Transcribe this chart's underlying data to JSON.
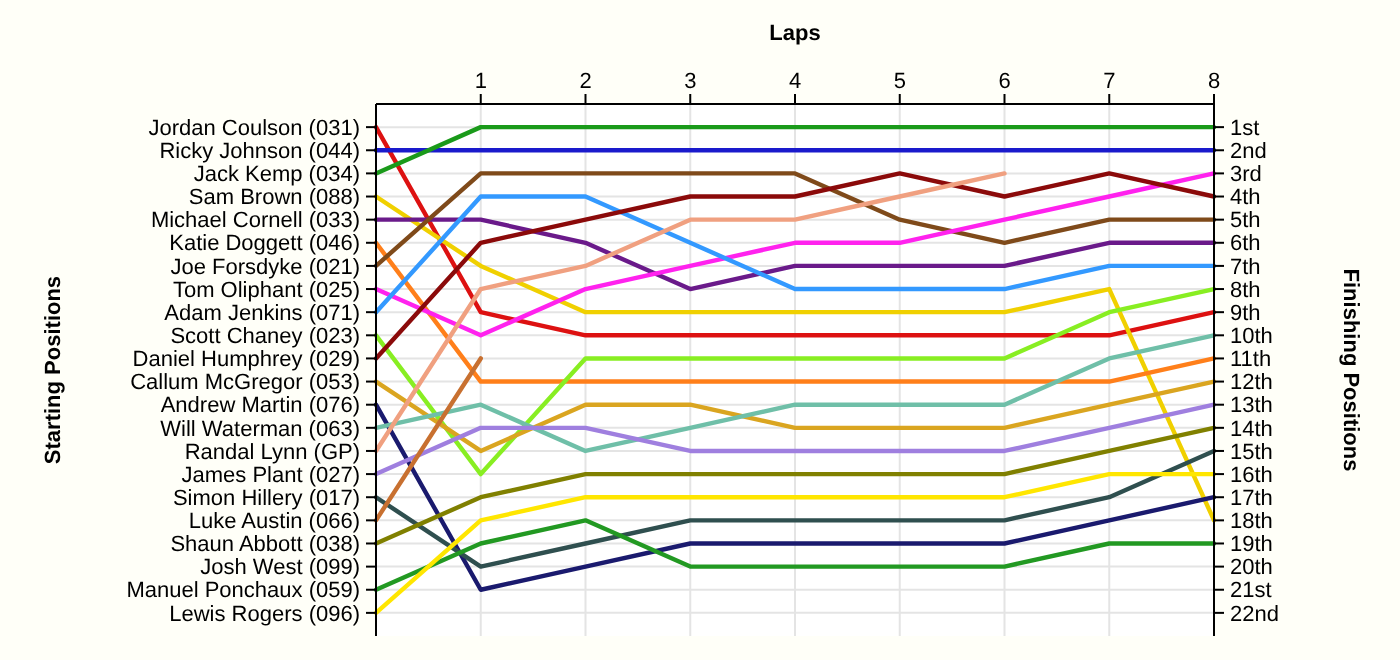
{
  "chart_data": {
    "type": "line",
    "xlabel": "Laps",
    "ylabel": "Finishing Positions",
    "x": [
      0,
      1,
      2,
      3,
      4,
      5,
      6,
      7,
      8
    ],
    "xlim": [
      0,
      8
    ],
    "xticks": [
      1,
      2,
      3,
      4,
      5,
      6,
      7,
      8
    ],
    "ylim": [
      23,
      0
    ],
    "yticks": [
      {
        "value": 1,
        "label": "1st"
      },
      {
        "value": 2,
        "label": "2nd"
      },
      {
        "value": 3,
        "label": "3rd"
      },
      {
        "value": 4,
        "label": "4th"
      },
      {
        "value": 5,
        "label": "5th"
      },
      {
        "value": 6,
        "label": "6th"
      },
      {
        "value": 7,
        "label": "7th"
      },
      {
        "value": 8,
        "label": "8th"
      },
      {
        "value": 9,
        "label": "9th"
      },
      {
        "value": 10,
        "label": "10th"
      },
      {
        "value": 11,
        "label": "11th"
      },
      {
        "value": 12,
        "label": "12th"
      },
      {
        "value": 13,
        "label": "13th"
      },
      {
        "value": 14,
        "label": "14th"
      },
      {
        "value": 15,
        "label": "15th"
      },
      {
        "value": 16,
        "label": "16th"
      },
      {
        "value": 17,
        "label": "17th"
      },
      {
        "value": 18,
        "label": "18th"
      },
      {
        "value": 19,
        "label": "19th"
      },
      {
        "value": 20,
        "label": "20th"
      },
      {
        "value": 21,
        "label": "21st"
      },
      {
        "value": 22,
        "label": "22nd"
      }
    ],
    "grid": true,
    "annotations": [
      "Starting Positions",
      "Josh West (099)"
    ],
    "series": [
      {
        "name": "Jordan Coulson (031)",
        "color": "#dd1111",
        "values": [
          1,
          9,
          10,
          10,
          10,
          10,
          10,
          10,
          9
        ]
      },
      {
        "name": "Ricky Johnson (044)",
        "color": "#1a1acc",
        "values": [
          2,
          2,
          2,
          2,
          2,
          2,
          2,
          2,
          2
        ]
      },
      {
        "name": "Jack Kemp (034)",
        "color": "#1a9a1a",
        "values": [
          3,
          1,
          1,
          1,
          1,
          1,
          1,
          1,
          1
        ]
      },
      {
        "name": "Sam Brown (088)",
        "color": "#f0d000",
        "values": [
          4,
          7,
          9,
          9,
          9,
          9,
          9,
          8,
          18
        ]
      },
      {
        "name": "Michael Cornell (033)",
        "color": "#6a1a8a",
        "values": [
          5,
          5,
          6,
          8,
          7,
          7,
          7,
          6,
          6
        ]
      },
      {
        "name": "Katie Doggett (046)",
        "color": "#ff7f1a",
        "values": [
          6,
          12,
          12,
          12,
          12,
          12,
          12,
          12,
          11
        ]
      },
      {
        "name": "Joe Forsdyke (021)",
        "color": "#7f4a1a",
        "values": [
          7,
          3,
          3,
          3,
          3,
          5,
          6,
          5,
          5
        ]
      },
      {
        "name": "Tom Oliphant (025)",
        "color": "#ff22ee",
        "values": [
          8,
          10,
          8,
          7,
          6,
          6,
          5,
          4,
          3
        ]
      },
      {
        "name": "Adam Jenkins (071)",
        "color": "#3399ff",
        "values": [
          9,
          4,
          4,
          6,
          8,
          8,
          8,
          7,
          7
        ]
      },
      {
        "name": "Scott Chaney (023)",
        "color": "#88ee22",
        "values": [
          10,
          16,
          11,
          11,
          11,
          11,
          11,
          9,
          8
        ]
      },
      {
        "name": "Daniel Humphrey (029)",
        "color": "#8b0a0a",
        "values": [
          11,
          6,
          5,
          4,
          4,
          3,
          4,
          3,
          4
        ]
      },
      {
        "name": "Callum McGregor (053)",
        "color": "#daa520",
        "values": [
          12,
          15,
          13,
          13,
          14,
          14,
          14,
          13,
          12
        ]
      },
      {
        "name": "Andrew Martin (076)",
        "color": "#1a1a6e",
        "values": [
          13,
          21,
          20,
          19,
          19,
          19,
          19,
          18,
          17
        ]
      },
      {
        "name": "Will Waterman (063)",
        "color": "#6fbfa8",
        "values": [
          14,
          13,
          15,
          14,
          13,
          13,
          13,
          11,
          10
        ]
      },
      {
        "name": "Randal Lynn (GP)",
        "color": "#f0a080",
        "values": [
          15,
          8,
          7,
          5,
          5,
          4,
          3,
          null,
          null
        ]
      },
      {
        "name": "James Plant (027)",
        "color": "#9f7fdf",
        "values": [
          16,
          14,
          14,
          15,
          15,
          15,
          15,
          14,
          13
        ]
      },
      {
        "name": "Simon Hillery (017)",
        "color": "#2f4f4f",
        "values": [
          17,
          20,
          19,
          18,
          18,
          18,
          18,
          17,
          15
        ]
      },
      {
        "name": "Luke Austin (066)",
        "color": "#c87030",
        "values": [
          18,
          11,
          null,
          null,
          null,
          null,
          null,
          null,
          null
        ]
      },
      {
        "name": "Shaun Abbott (038)",
        "color": "#808000",
        "values": [
          19,
          17,
          16,
          16,
          16,
          16,
          16,
          15,
          14
        ]
      },
      {
        "name": "Manuel Ponchaux (059)",
        "color": "#229922",
        "values": [
          21,
          19,
          18,
          20,
          20,
          20,
          20,
          19,
          19
        ]
      },
      {
        "name": "Lewis Rogers (096)",
        "color": "#ffe600",
        "values": [
          22,
          18,
          17,
          17,
          17,
          17,
          17,
          16,
          16
        ]
      }
    ]
  }
}
